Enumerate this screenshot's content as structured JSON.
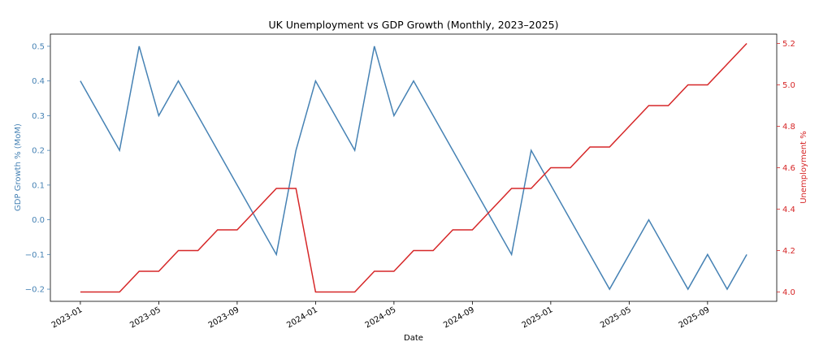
{
  "chart_data": {
    "type": "line",
    "title": "UK Unemployment vs GDP Growth (Monthly, 2023–2025)",
    "xlabel": "Date",
    "ylabel_left": "GDP Growth % (MoM)",
    "ylabel_right": "Unemployment %",
    "grid": false,
    "legend": "none",
    "x": [
      "2023-01",
      "2023-02",
      "2023-03",
      "2023-04",
      "2023-05",
      "2023-06",
      "2023-07",
      "2023-08",
      "2023-09",
      "2023-10",
      "2023-11",
      "2023-12",
      "2024-01",
      "2024-02",
      "2024-03",
      "2024-04",
      "2024-05",
      "2024-06",
      "2024-07",
      "2024-08",
      "2024-09",
      "2024-10",
      "2024-11",
      "2024-12",
      "2025-01",
      "2025-02",
      "2025-03",
      "2025-04",
      "2025-05",
      "2025-06",
      "2025-07",
      "2025-08",
      "2025-09",
      "2025-10",
      "2025-11"
    ],
    "x_ticks": [
      "2023-01",
      "2023-05",
      "2023-09",
      "2024-01",
      "2024-05",
      "2024-09",
      "2025-01",
      "2025-05",
      "2025-09"
    ],
    "series": [
      {
        "axis": "left",
        "color": "#4682b4",
        "values": [
          0.4,
          0.3,
          0.2,
          0.5,
          0.3,
          0.4,
          0.3,
          0.2,
          0.1,
          0.0,
          -0.1,
          0.2,
          0.4,
          0.3,
          0.2,
          0.5,
          0.3,
          0.4,
          0.3,
          0.2,
          0.1,
          0.0,
          -0.1,
          0.2,
          0.1,
          0.0,
          -0.1,
          -0.2,
          -0.1,
          0.0,
          -0.1,
          -0.2,
          -0.1,
          -0.2,
          -0.1
        ]
      },
      {
        "axis": "right",
        "color": "#d62728",
        "values": [
          4.0,
          4.0,
          4.0,
          4.1,
          4.1,
          4.2,
          4.2,
          4.3,
          4.3,
          4.4,
          4.5,
          4.5,
          4.0,
          4.0,
          4.0,
          4.1,
          4.1,
          4.2,
          4.2,
          4.3,
          4.3,
          4.4,
          4.5,
          4.5,
          4.6,
          4.6,
          4.7,
          4.7,
          4.8,
          4.9,
          4.9,
          5.0,
          5.0,
          5.1,
          5.2
        ]
      }
    ],
    "ylim_left": [
      -0.235,
      0.535
    ],
    "ylim_right": [
      3.955,
      5.245
    ],
    "yticks_left": [
      "0.5",
      "0.4",
      "0.3",
      "0.2",
      "0.1",
      "0.0",
      "−0.1",
      "−0.2"
    ],
    "yticks_left_values": [
      0.5,
      0.4,
      0.3,
      0.2,
      0.1,
      0.0,
      -0.1,
      -0.2
    ],
    "yticks_right": [
      "5.2",
      "5.0",
      "4.8",
      "4.6",
      "4.4",
      "4.2",
      "4.0"
    ],
    "yticks_right_values": [
      5.2,
      5.0,
      4.8,
      4.6,
      4.4,
      4.2,
      4.0
    ],
    "colors": {
      "left_axis": "#4682b4",
      "right_axis": "#d62728"
    }
  }
}
